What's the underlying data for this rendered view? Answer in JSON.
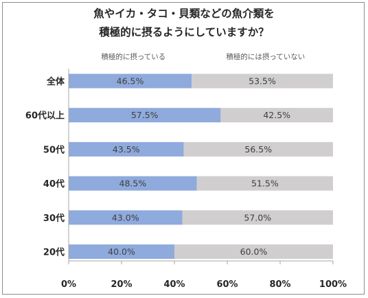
{
  "title_lines": [
    "魚やイカ・タコ・貝類などの魚介類を",
    "積極的に摂るようにしていますか？"
  ],
  "colors": {
    "positive": "#8faadc",
    "negative": "#d0cece",
    "axis": "#a6a6a6"
  },
  "chart_data": {
    "type": "bar",
    "orientation": "horizontal",
    "stacked": true,
    "percent": true,
    "title": "魚やイカ・タコ・貝類などの魚介類を積極的に摂るようにしていますか？",
    "categories": [
      "全体",
      "60代以上",
      "50代",
      "40代",
      "30代",
      "20代"
    ],
    "series": [
      {
        "name": "積極的に摂っている",
        "values": [
          46.5,
          57.5,
          43.5,
          48.5,
          43.0,
          40.0
        ],
        "labels": [
          "46.5%",
          "57.5%",
          "43.5%",
          "48.5%",
          "43.0%",
          "40.0%"
        ]
      },
      {
        "name": "積極的には摂っていない",
        "values": [
          53.5,
          42.5,
          56.5,
          51.5,
          57.0,
          60.0
        ],
        "labels": [
          "53.5%",
          "42.5%",
          "56.5%",
          "51.5%",
          "57.0%",
          "60.0%"
        ]
      }
    ],
    "xlim": [
      0,
      100
    ],
    "xticks": [
      "0%",
      "20%",
      "40%",
      "60%",
      "80%",
      "100%"
    ],
    "xtick_values": [
      0,
      20,
      40,
      60,
      80,
      100
    ],
    "legend": "top",
    "grid": false
  }
}
